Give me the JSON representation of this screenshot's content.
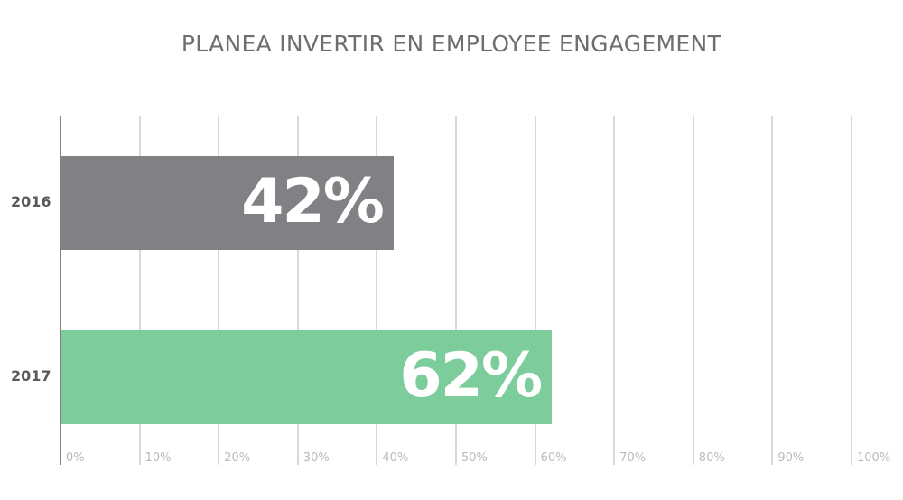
{
  "chart_data": {
    "type": "bar",
    "orientation": "horizontal",
    "title": "PLANEA INVERTIR EN EMPLOYEE ENGAGEMENT",
    "xlabel": "",
    "ylabel": "",
    "categories": [
      "2016",
      "2017"
    ],
    "values": [
      42,
      62
    ],
    "value_labels": [
      "42%",
      "62%"
    ],
    "bar_colors": [
      "#808184",
      "#7ccc9c"
    ],
    "xlim": [
      0,
      100
    ],
    "x_ticks": [
      0,
      10,
      20,
      30,
      40,
      50,
      60,
      70,
      80,
      90,
      100
    ],
    "x_tick_labels": [
      "0%",
      "10%",
      "20%",
      "30%",
      "40%",
      "50%",
      "60%",
      "70%",
      "80%",
      "90%",
      "100%"
    ],
    "grid": true,
    "legend": null
  },
  "colors": {
    "title": "#6d6e70",
    "axis": "#808184",
    "gridline": "#d8d8d9",
    "tick_label": "#b9babc",
    "category_label": "#58595b",
    "value_label": "#ffffff"
  }
}
